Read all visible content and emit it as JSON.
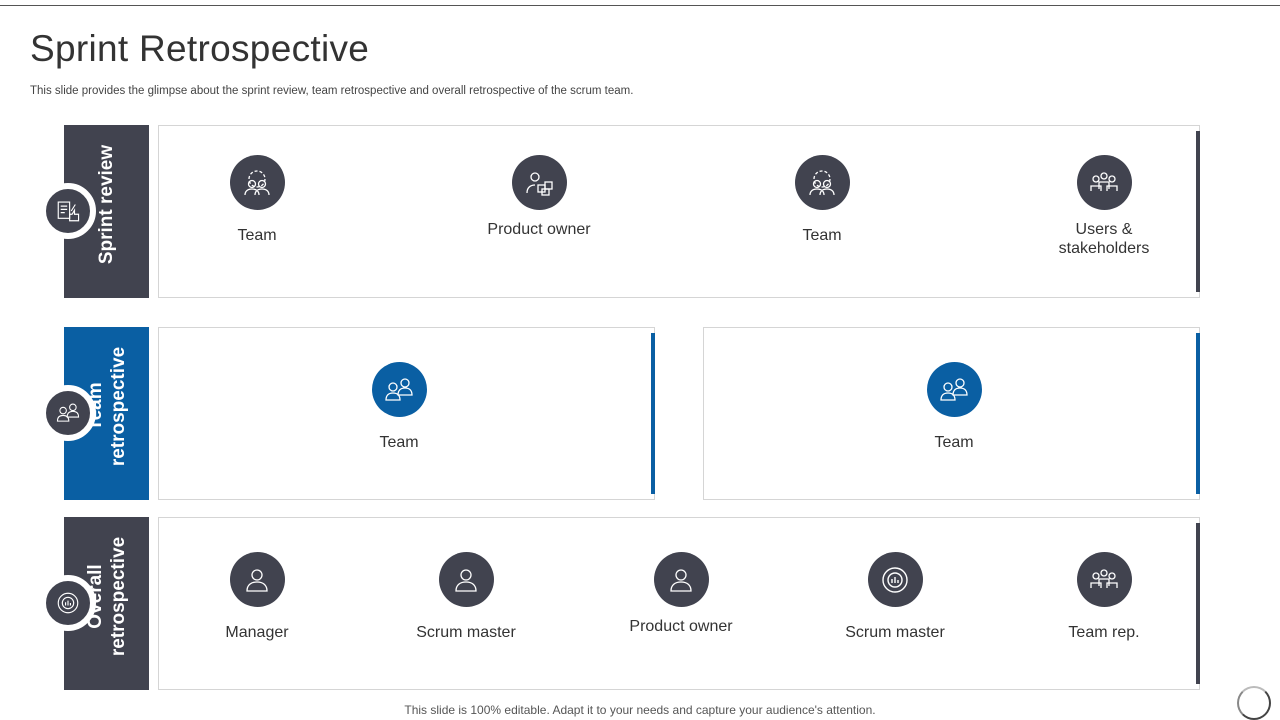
{
  "title": "Sprint Retrospective",
  "subtitle": "This slide provides the glimpse about the sprint review, team retrospective and overall retrospective of the scrum team.",
  "colors": {
    "dark": "#41434f",
    "blue": "#0a5fa3"
  },
  "sections": [
    {
      "label": "Sprint review",
      "icon": "clipboard-thumbs-up-icon",
      "items": [
        {
          "label": "Team",
          "icon": "team-gear-icon"
        },
        {
          "label": "Product owner",
          "icon": "person-boxes-icon"
        },
        {
          "label": "Team",
          "icon": "team-gear-icon"
        },
        {
          "label": "Users & stakeholders",
          "icon": "stakeholders-dollar-icon"
        }
      ]
    },
    {
      "label": "Team retrospective",
      "icon": "team-faces-icon",
      "items": [
        {
          "label": "Team",
          "icon": "two-people-icon"
        },
        {
          "label": "Team",
          "icon": "two-people-icon"
        }
      ]
    },
    {
      "label": "Overall retrospective",
      "icon": "target-chart-icon",
      "items": [
        {
          "label": "Manager",
          "icon": "woman-icon"
        },
        {
          "label": "Scrum master",
          "icon": "woman-icon"
        },
        {
          "label": "Product owner",
          "icon": "man-tie-icon"
        },
        {
          "label": "Scrum master",
          "icon": "hands-cycle-icon"
        },
        {
          "label": "Team rep.",
          "icon": "group-icon"
        }
      ]
    }
  ],
  "footer": "This slide is 100% editable. Adapt it to your needs and capture your audience's attention."
}
